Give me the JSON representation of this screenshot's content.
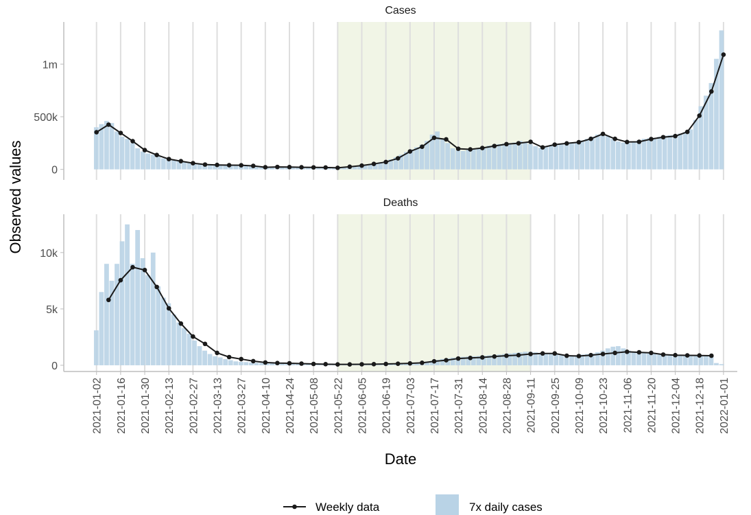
{
  "chart_data": {
    "type": "bar-line",
    "xlabel": "Date",
    "ylabel": "Observed values",
    "xlim": [
      "2020-12-14",
      "2022-01-09"
    ],
    "xticks": [
      "2021-01-02",
      "2021-01-16",
      "2021-01-30",
      "2021-02-13",
      "2021-02-27",
      "2021-03-13",
      "2021-03-27",
      "2021-04-10",
      "2021-04-24",
      "2021-05-08",
      "2021-05-22",
      "2021-06-05",
      "2021-06-19",
      "2021-07-03",
      "2021-07-17",
      "2021-07-31",
      "2021-08-14",
      "2021-08-28",
      "2021-09-11",
      "2021-09-25",
      "2021-10-09",
      "2021-10-23",
      "2021-11-06",
      "2021-11-20",
      "2021-12-04",
      "2021-12-18",
      "2022-01-01"
    ],
    "shaded_period": [
      "2021-05-22",
      "2021-09-11"
    ],
    "shaded_color": "#f1f5e6",
    "grid": true,
    "legend": "bottom",
    "series": [
      {
        "name": "Weekly data",
        "color": "#1a1a1a"
      },
      {
        "name": "7x daily cases",
        "color": "#b9d3e6"
      }
    ],
    "weekly_x": [
      "2021-01-02",
      "2021-01-09",
      "2021-01-16",
      "2021-01-23",
      "2021-01-30",
      "2021-02-06",
      "2021-02-13",
      "2021-02-20",
      "2021-02-27",
      "2021-03-06",
      "2021-03-13",
      "2021-03-20",
      "2021-03-27",
      "2021-04-03",
      "2021-04-10",
      "2021-04-17",
      "2021-04-24",
      "2021-05-01",
      "2021-05-08",
      "2021-05-15",
      "2021-05-22",
      "2021-05-29",
      "2021-06-05",
      "2021-06-12",
      "2021-06-19",
      "2021-06-26",
      "2021-07-03",
      "2021-07-10",
      "2021-07-17",
      "2021-07-24",
      "2021-07-31",
      "2021-08-07",
      "2021-08-14",
      "2021-08-21",
      "2021-08-28",
      "2021-09-04",
      "2021-09-11",
      "2021-09-18",
      "2021-09-25",
      "2021-10-02",
      "2021-10-09",
      "2021-10-16",
      "2021-10-23",
      "2021-10-30",
      "2021-11-06",
      "2021-11-13",
      "2021-11-20",
      "2021-11-27",
      "2021-12-04",
      "2021-12-11",
      "2021-12-18",
      "2021-12-25",
      "2022-01-01"
    ],
    "daily_x": [
      "2021-01-02",
      "2021-01-05",
      "2021-01-08",
      "2021-01-11",
      "2021-01-14",
      "2021-01-17",
      "2021-01-20",
      "2021-01-23",
      "2021-01-26",
      "2021-01-29",
      "2021-02-01",
      "2021-02-04",
      "2021-02-07",
      "2021-02-10",
      "2021-02-13",
      "2021-02-16",
      "2021-02-19",
      "2021-02-22",
      "2021-02-25",
      "2021-02-28",
      "2021-03-03",
      "2021-03-06",
      "2021-03-09",
      "2021-03-12",
      "2021-03-15",
      "2021-03-18",
      "2021-03-21",
      "2021-03-24",
      "2021-03-27",
      "2021-03-30",
      "2021-04-02",
      "2021-04-05",
      "2021-04-08",
      "2021-04-11",
      "2021-04-14",
      "2021-04-17",
      "2021-04-20",
      "2021-04-23",
      "2021-04-26",
      "2021-04-29",
      "2021-05-02",
      "2021-05-05",
      "2021-05-08",
      "2021-05-11",
      "2021-05-14",
      "2021-05-17",
      "2021-05-20",
      "2021-05-23",
      "2021-05-26",
      "2021-05-29",
      "2021-06-01",
      "2021-06-04",
      "2021-06-07",
      "2021-06-10",
      "2021-06-13",
      "2021-06-16",
      "2021-06-19",
      "2021-06-22",
      "2021-06-25",
      "2021-06-28",
      "2021-07-01",
      "2021-07-04",
      "2021-07-07",
      "2021-07-10",
      "2021-07-13",
      "2021-07-16",
      "2021-07-19",
      "2021-07-22",
      "2021-07-25",
      "2021-07-28",
      "2021-07-31",
      "2021-08-03",
      "2021-08-06",
      "2021-08-09",
      "2021-08-12",
      "2021-08-15",
      "2021-08-18",
      "2021-08-21",
      "2021-08-24",
      "2021-08-27",
      "2021-08-30",
      "2021-09-02",
      "2021-09-05",
      "2021-09-08",
      "2021-09-11",
      "2021-09-14",
      "2021-09-17",
      "2021-09-20",
      "2021-09-23",
      "2021-09-26",
      "2021-09-29",
      "2021-10-02",
      "2021-10-05",
      "2021-10-08",
      "2021-10-11",
      "2021-10-14",
      "2021-10-17",
      "2021-10-20",
      "2021-10-23",
      "2021-10-26",
      "2021-10-29",
      "2021-11-01",
      "2021-11-04",
      "2021-11-07",
      "2021-11-10",
      "2021-11-13",
      "2021-11-16",
      "2021-11-19",
      "2021-11-22",
      "2021-11-25",
      "2021-11-28",
      "2021-12-01",
      "2021-12-04",
      "2021-12-07",
      "2021-12-10",
      "2021-12-13",
      "2021-12-16",
      "2021-12-19",
      "2021-12-22",
      "2021-12-25",
      "2021-12-28",
      "2021-12-31"
    ],
    "facets": [
      {
        "title": "Cases",
        "ylim": [
          -100000,
          1400000
        ],
        "yticks": [
          0,
          {
            "value": 500000,
            "label": "500k"
          },
          {
            "value": 1000000,
            "label": "1m"
          }
        ],
        "weekly": [
          353000,
          425000,
          346000,
          268000,
          183000,
          137000,
          98000,
          78000,
          59000,
          46000,
          42000,
          40000,
          39000,
          33000,
          20000,
          23000,
          22000,
          20000,
          19000,
          18000,
          15000,
          25000,
          36000,
          52000,
          70000,
          105000,
          170000,
          215000,
          300000,
          285000,
          196000,
          190000,
          203000,
          222000,
          240000,
          248000,
          262000,
          209000,
          235000,
          247000,
          258000,
          290000,
          337000,
          290000,
          260000,
          262000,
          288000,
          306000,
          316000,
          356000,
          510000,
          740000,
          1090000
        ],
        "daily": [
          400000,
          430000,
          460000,
          440000,
          360000,
          310000,
          290000,
          250000,
          200000,
          170000,
          150000,
          140000,
          120000,
          105000,
          95000,
          85000,
          80000,
          70000,
          62000,
          55000,
          50000,
          45000,
          44000,
          42000,
          40000,
          40000,
          38000,
          40000,
          38000,
          34000,
          30000,
          22000,
          20000,
          22000,
          24000,
          22000,
          22000,
          21000,
          20000,
          20000,
          19000,
          19000,
          18000,
          18000,
          17000,
          16000,
          15000,
          18000,
          22000,
          28000,
          32000,
          38000,
          45000,
          52000,
          60000,
          68000,
          80000,
          95000,
          115000,
          140000,
          165000,
          190000,
          210000,
          235000,
          270000,
          330000,
          360000,
          290000,
          250000,
          200000,
          180000,
          175000,
          185000,
          195000,
          205000,
          210000,
          225000,
          235000,
          240000,
          245000,
          250000,
          255000,
          270000,
          260000,
          240000,
          220000,
          205000,
          215000,
          230000,
          240000,
          245000,
          250000,
          255000,
          260000,
          275000,
          290000,
          310000,
          330000,
          345000,
          320000,
          290000,
          265000,
          255000,
          250000,
          265000,
          275000,
          290000,
          295000,
          300000,
          310000,
          320000,
          325000,
          330000,
          340000,
          355000,
          380000,
          470000,
          600000,
          700000,
          820000,
          1050000,
          1320000
        ]
      },
      {
        "title": "Deaths",
        "ylim": [
          -550,
          13400
        ],
        "yticks": [
          0,
          {
            "value": 5000,
            "label": "5k"
          },
          {
            "value": 10000,
            "label": "10k"
          }
        ],
        "weekly": [
          null,
          5800,
          7550,
          8700,
          8450,
          6950,
          5050,
          3700,
          2550,
          1900,
          1100,
          730,
          550,
          370,
          250,
          200,
          180,
          150,
          120,
          100,
          80,
          80,
          90,
          100,
          120,
          140,
          170,
          220,
          350,
          450,
          600,
          650,
          700,
          780,
          850,
          900,
          1000,
          1050,
          1050,
          850,
          820,
          900,
          1000,
          1100,
          1200,
          1150,
          1100,
          950,
          900,
          880,
          870,
          850,
          null
        ],
        "daily": [
          3100,
          6500,
          9000,
          7500,
          9000,
          11000,
          12500,
          9000,
          12000,
          9500,
          8000,
          10000,
          7000,
          6000,
          5500,
          4500,
          3800,
          3300,
          2800,
          2200,
          1700,
          1300,
          1000,
          800,
          700,
          550,
          450,
          350,
          300,
          280,
          250,
          220,
          200,
          190,
          180,
          170,
          160,
          150,
          140,
          130,
          120,
          110,
          100,
          95,
          90,
          85,
          80,
          80,
          80,
          85,
          90,
          95,
          100,
          105,
          110,
          120,
          130,
          140,
          150,
          160,
          170,
          190,
          220,
          260,
          320,
          400,
          480,
          560,
          620,
          680,
          720,
          750,
          780,
          800,
          820,
          850,
          880,
          900,
          950,
          1000,
          1050,
          1100,
          1150,
          1200,
          1200,
          1150,
          1100,
          1050,
          1000,
          950,
          900,
          900,
          880,
          900,
          950,
          1000,
          1050,
          1150,
          1300,
          1500,
          1650,
          1700,
          1500,
          1300,
          1200,
          1150,
          1100,
          1050,
          1000,
          950,
          950,
          950,
          950,
          940,
          930,
          920,
          900,
          880,
          870,
          860,
          200,
          100
        ]
      }
    ]
  }
}
